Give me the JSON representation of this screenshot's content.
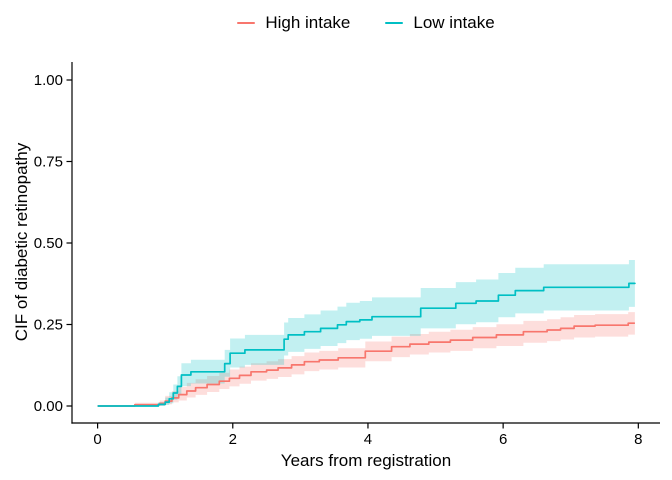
{
  "chart_data": {
    "type": "line",
    "subtype": "step_cumulative_incidence_with_confidence_bands",
    "title": "",
    "xlabel": "Years from registration",
    "ylabel": "CIF of diabetic retinopathy",
    "grid": false,
    "legend_position": "top-center",
    "xlim": [
      -0.4,
      8.4
    ],
    "ylim": [
      -0.05,
      1.05
    ],
    "x_ticks": [
      {
        "v": 0,
        "label": "0"
      },
      {
        "v": 2,
        "label": "2"
      },
      {
        "v": 4,
        "label": "4"
      },
      {
        "v": 6,
        "label": "6"
      },
      {
        "v": 8,
        "label": "8"
      }
    ],
    "y_ticks": [
      {
        "v": 0.0,
        "label": "0.00"
      },
      {
        "v": 0.25,
        "label": "0.25"
      },
      {
        "v": 0.5,
        "label": "0.50"
      },
      {
        "v": 0.75,
        "label": "0.75"
      },
      {
        "v": 1.0,
        "label": "1.00"
      }
    ],
    "axis_color": "#000000",
    "series": [
      {
        "name": "High intake",
        "color": "#F8766D",
        "band_color": "rgba(248,118,109,0.24)",
        "steps_format": [
          "years",
          "estimate",
          "ci_lower",
          "ci_upper"
        ],
        "steps": [
          [
            0.0,
            0.0,
            0.0,
            0.0
          ],
          [
            0.55,
            0.004,
            0.0,
            0.01
          ],
          [
            0.92,
            0.008,
            0.001,
            0.017
          ],
          [
            1.0,
            0.015,
            0.005,
            0.031
          ],
          [
            1.1,
            0.025,
            0.011,
            0.046
          ],
          [
            1.2,
            0.035,
            0.017,
            0.059
          ],
          [
            1.32,
            0.046,
            0.026,
            0.071
          ],
          [
            1.45,
            0.056,
            0.034,
            0.082
          ],
          [
            1.62,
            0.066,
            0.043,
            0.092
          ],
          [
            1.8,
            0.076,
            0.052,
            0.102
          ],
          [
            1.95,
            0.085,
            0.06,
            0.112
          ],
          [
            2.1,
            0.094,
            0.068,
            0.121
          ],
          [
            2.27,
            0.105,
            0.078,
            0.131
          ],
          [
            2.5,
            0.11,
            0.083,
            0.137
          ],
          [
            2.67,
            0.117,
            0.089,
            0.144
          ],
          [
            2.87,
            0.126,
            0.097,
            0.153
          ],
          [
            3.06,
            0.136,
            0.107,
            0.164
          ],
          [
            3.28,
            0.141,
            0.112,
            0.169
          ],
          [
            3.56,
            0.148,
            0.118,
            0.177
          ],
          [
            3.96,
            0.168,
            0.137,
            0.198
          ],
          [
            4.35,
            0.182,
            0.15,
            0.213
          ],
          [
            4.62,
            0.19,
            0.158,
            0.221
          ],
          [
            4.9,
            0.196,
            0.164,
            0.228
          ],
          [
            5.22,
            0.202,
            0.169,
            0.234
          ],
          [
            5.55,
            0.21,
            0.177,
            0.242
          ],
          [
            5.9,
            0.218,
            0.184,
            0.251
          ],
          [
            6.3,
            0.228,
            0.194,
            0.261
          ],
          [
            6.65,
            0.233,
            0.199,
            0.266
          ],
          [
            6.85,
            0.238,
            0.204,
            0.272
          ],
          [
            7.05,
            0.245,
            0.21,
            0.279
          ],
          [
            7.36,
            0.248,
            0.213,
            0.282
          ],
          [
            7.85,
            0.254,
            0.219,
            0.288
          ],
          [
            7.95,
            0.254,
            0.219,
            0.288
          ]
        ]
      },
      {
        "name": "Low intake",
        "color": "#00BFC4",
        "band_color": "rgba(0,191,196,0.24)",
        "steps_format": [
          "years",
          "estimate",
          "ci_lower",
          "ci_upper"
        ],
        "steps": [
          [
            0.0,
            0.0,
            0.0,
            0.0
          ],
          [
            0.9,
            0.005,
            0.0,
            0.012
          ],
          [
            1.0,
            0.012,
            0.003,
            0.026
          ],
          [
            1.06,
            0.022,
            0.008,
            0.042
          ],
          [
            1.12,
            0.04,
            0.019,
            0.066
          ],
          [
            1.18,
            0.06,
            0.034,
            0.091
          ],
          [
            1.24,
            0.095,
            0.061,
            0.131
          ],
          [
            1.38,
            0.105,
            0.069,
            0.142
          ],
          [
            1.88,
            0.13,
            0.09,
            0.172
          ],
          [
            1.96,
            0.162,
            0.118,
            0.207
          ],
          [
            2.18,
            0.172,
            0.126,
            0.218
          ],
          [
            2.76,
            0.205,
            0.155,
            0.256
          ],
          [
            2.82,
            0.218,
            0.166,
            0.27
          ],
          [
            3.06,
            0.228,
            0.175,
            0.281
          ],
          [
            3.3,
            0.238,
            0.184,
            0.293
          ],
          [
            3.55,
            0.249,
            0.193,
            0.305
          ],
          [
            3.68,
            0.259,
            0.202,
            0.317
          ],
          [
            3.88,
            0.264,
            0.206,
            0.322
          ],
          [
            4.06,
            0.274,
            0.215,
            0.333
          ],
          [
            4.78,
            0.3,
            0.238,
            0.362
          ],
          [
            5.3,
            0.315,
            0.251,
            0.38
          ],
          [
            5.6,
            0.322,
            0.257,
            0.388
          ],
          [
            5.93,
            0.34,
            0.272,
            0.408
          ],
          [
            6.18,
            0.354,
            0.284,
            0.424
          ],
          [
            6.6,
            0.364,
            0.293,
            0.435
          ],
          [
            7.86,
            0.376,
            0.304,
            0.448
          ],
          [
            7.95,
            0.378,
            0.306,
            0.45
          ]
        ]
      }
    ]
  }
}
